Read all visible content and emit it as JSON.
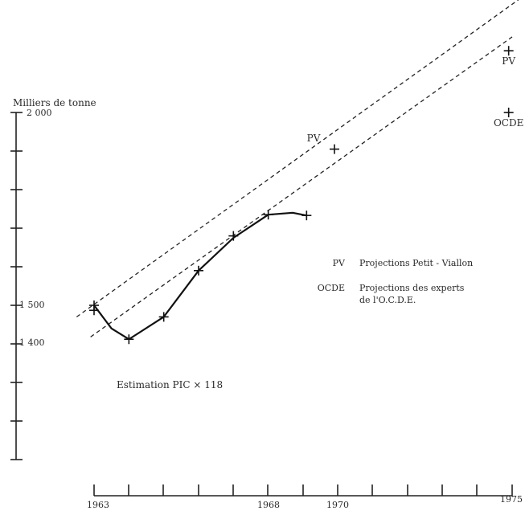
{
  "chart_data": {
    "type": "line",
    "ylabel": "Milliers de tonne",
    "y_tick_labels": [
      "2 000",
      "1 500",
      "1 400"
    ],
    "x_tick_labels": [
      "1963",
      "1968",
      "1970",
      "1975"
    ],
    "annotation": "Estimation PIC × 118",
    "legend": [
      {
        "abbr": "PV",
        "text": "Projections Petit - Viallon"
      },
      {
        "abbr": "OCDE",
        "text": "Projections des experts",
        "text2": "de l'O.C.D.E."
      }
    ],
    "series": [
      {
        "values": [
          {
            "x": 1963.0,
            "y": 1500
          },
          {
            "x": 1963.5,
            "y": 1440
          },
          {
            "x": 1964.0,
            "y": 1412
          },
          {
            "x": 1965.0,
            "y": 1470
          },
          {
            "x": 1966.0,
            "y": 1590
          },
          {
            "x": 1967.0,
            "y": 1675
          },
          {
            "x": 1968.0,
            "y": 1735
          },
          {
            "x": 1968.7,
            "y": 1740
          },
          {
            "x": 1969.1,
            "y": 1733
          }
        ]
      }
    ],
    "crosses": [
      {
        "x": 1963.0,
        "y": 1500
      },
      {
        "x": 1963.0,
        "y": 1487
      },
      {
        "x": 1964.0,
        "y": 1412
      },
      {
        "x": 1965.0,
        "y": 1470
      },
      {
        "x": 1966.0,
        "y": 1590
      },
      {
        "x": 1967.0,
        "y": 1680
      },
      {
        "x": 1968.0,
        "y": 1735
      },
      {
        "x": 1969.1,
        "y": 1733
      },
      {
        "x": 1969.9,
        "y": 1905
      },
      {
        "x": 1974.9,
        "y": 2160
      },
      {
        "x": 1974.9,
        "y": 2000
      }
    ],
    "point_labels": [
      {
        "text": "PV",
        "x": 1969.3,
        "y": 1925
      },
      {
        "text": "PV",
        "x": 1974.9,
        "y": 2125
      },
      {
        "text": "OCDE",
        "x": 1974.9,
        "y": 1965
      }
    ],
    "trend_lines": [
      {
        "from": {
          "x": 1962.5,
          "y": 1470
        },
        "to": {
          "x": 1975.5,
          "y": 2313
        }
      },
      {
        "from": {
          "x": 1962.9,
          "y": 1418
        },
        "to": {
          "x": 1975.0,
          "y": 2196
        }
      }
    ],
    "xlim": [
      1963,
      1975
    ],
    "ylim": [
      1200,
      2000
    ],
    "grid": false
  }
}
